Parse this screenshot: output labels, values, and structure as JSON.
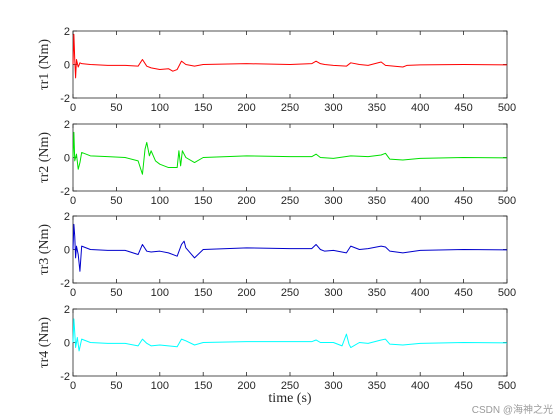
{
  "figure": {
    "xlabel": "time (s)",
    "watermark": "CSDN @海神之光"
  },
  "chart_data": [
    {
      "type": "line",
      "ylabel": "τr1 (Nm)",
      "xlim": [
        0,
        500
      ],
      "ylim": [
        -2,
        2
      ],
      "xticks": [
        0,
        50,
        100,
        150,
        200,
        250,
        300,
        350,
        400,
        450,
        500
      ],
      "yticks": [
        -2,
        0,
        2
      ],
      "color": "#ff0000",
      "series": [
        {
          "x": [
            0,
            1,
            2,
            3,
            4,
            6,
            8,
            10,
            20,
            40,
            60,
            75,
            80,
            85,
            90,
            100,
            110,
            115,
            120,
            125,
            130,
            140,
            150,
            200,
            250,
            275,
            280,
            285,
            290,
            300,
            315,
            320,
            330,
            340,
            355,
            360,
            380,
            385,
            400,
            450,
            500
          ],
          "y": [
            0,
            1.8,
            0.3,
            -0.8,
            0.3,
            -0.15,
            0.1,
            0.05,
            0.0,
            -0.05,
            -0.05,
            -0.1,
            0.3,
            -0.1,
            -0.2,
            -0.3,
            -0.25,
            -0.4,
            -0.3,
            0.2,
            0.0,
            -0.1,
            0.0,
            0.05,
            0.0,
            0.05,
            0.2,
            0.05,
            0.0,
            -0.05,
            -0.1,
            0.1,
            0.0,
            -0.05,
            0.15,
            -0.05,
            -0.15,
            -0.05,
            -0.02,
            0.0,
            -0.02
          ]
        }
      ]
    },
    {
      "type": "line",
      "ylabel": "τr2 (Nm)",
      "xlim": [
        0,
        500
      ],
      "ylim": [
        -2,
        2
      ],
      "xticks": [
        0,
        50,
        100,
        150,
        200,
        250,
        300,
        350,
        400,
        450,
        500
      ],
      "yticks": [
        -2,
        0,
        2
      ],
      "color": "#00e000",
      "series": [
        {
          "x": [
            0,
            1,
            2,
            4,
            6,
            8,
            10,
            20,
            40,
            60,
            75,
            80,
            83,
            85,
            88,
            90,
            95,
            100,
            110,
            120,
            122,
            124,
            126,
            130,
            140,
            150,
            200,
            250,
            275,
            280,
            285,
            300,
            320,
            340,
            355,
            360,
            365,
            380,
            400,
            450,
            500
          ],
          "y": [
            0,
            1.5,
            -0.2,
            0.2,
            -0.7,
            -0.3,
            0.3,
            0.1,
            0.05,
            0.0,
            -0.2,
            -1.0,
            0.5,
            0.9,
            0.1,
            0.4,
            -0.2,
            -0.4,
            -0.6,
            -0.6,
            0.4,
            -0.5,
            0.4,
            0.0,
            -0.3,
            0.0,
            0.1,
            0.05,
            0.05,
            0.2,
            0.0,
            -0.05,
            0.1,
            0.05,
            0.15,
            0.25,
            -0.1,
            -0.15,
            -0.05,
            0.0,
            -0.02
          ]
        }
      ]
    },
    {
      "type": "line",
      "ylabel": "τr3 (Nm)",
      "xlim": [
        0,
        500
      ],
      "ylim": [
        -2,
        2
      ],
      "xticks": [
        0,
        50,
        100,
        150,
        200,
        250,
        300,
        350,
        400,
        450,
        500
      ],
      "yticks": [
        -2,
        0,
        2
      ],
      "color": "#0000cc",
      "series": [
        {
          "x": [
            0,
            1,
            2,
            3,
            4,
            6,
            8,
            10,
            20,
            40,
            60,
            75,
            80,
            85,
            90,
            100,
            110,
            120,
            125,
            128,
            130,
            140,
            150,
            200,
            250,
            275,
            280,
            285,
            290,
            300,
            315,
            320,
            330,
            340,
            355,
            360,
            365,
            380,
            400,
            450,
            500
          ],
          "y": [
            0,
            1.5,
            0.8,
            -0.5,
            0.2,
            -0.3,
            -1.3,
            0.2,
            0.0,
            -0.05,
            -0.05,
            -0.3,
            0.3,
            -0.1,
            -0.15,
            -0.1,
            -0.2,
            -0.4,
            0.3,
            0.5,
            0.1,
            -0.5,
            0.0,
            0.1,
            0.05,
            0.05,
            0.3,
            0.0,
            -0.1,
            -0.05,
            -0.2,
            0.2,
            0.0,
            0.05,
            0.2,
            0.15,
            -0.1,
            -0.2,
            -0.05,
            0.0,
            -0.02
          ]
        }
      ]
    },
    {
      "type": "line",
      "ylabel": "τr4 (Nm)",
      "xlim": [
        0,
        500
      ],
      "ylim": [
        -2,
        2
      ],
      "xticks": [
        0,
        50,
        100,
        150,
        200,
        250,
        300,
        350,
        400,
        450,
        500
      ],
      "yticks": [
        -2,
        0,
        2
      ],
      "color": "#00ffff",
      "series": [
        {
          "x": [
            0,
            1,
            2,
            3,
            5,
            7,
            10,
            20,
            40,
            60,
            75,
            80,
            85,
            90,
            100,
            110,
            120,
            125,
            130,
            140,
            150,
            200,
            250,
            275,
            280,
            285,
            300,
            310,
            315,
            318,
            320,
            330,
            340,
            355,
            360,
            365,
            380,
            400,
            450,
            500
          ],
          "y": [
            0,
            1.4,
            0.6,
            -0.3,
            0.3,
            -0.5,
            0.2,
            0.0,
            -0.05,
            -0.05,
            -0.2,
            0.2,
            -0.05,
            -0.2,
            -0.15,
            -0.2,
            -0.25,
            0.2,
            0.1,
            -0.15,
            0.0,
            0.05,
            0.05,
            0.05,
            0.15,
            0.0,
            0.0,
            -0.2,
            0.5,
            -0.1,
            -0.3,
            0.0,
            -0.05,
            0.15,
            0.2,
            -0.1,
            -0.15,
            -0.05,
            0.0,
            -0.02
          ]
        }
      ]
    }
  ]
}
